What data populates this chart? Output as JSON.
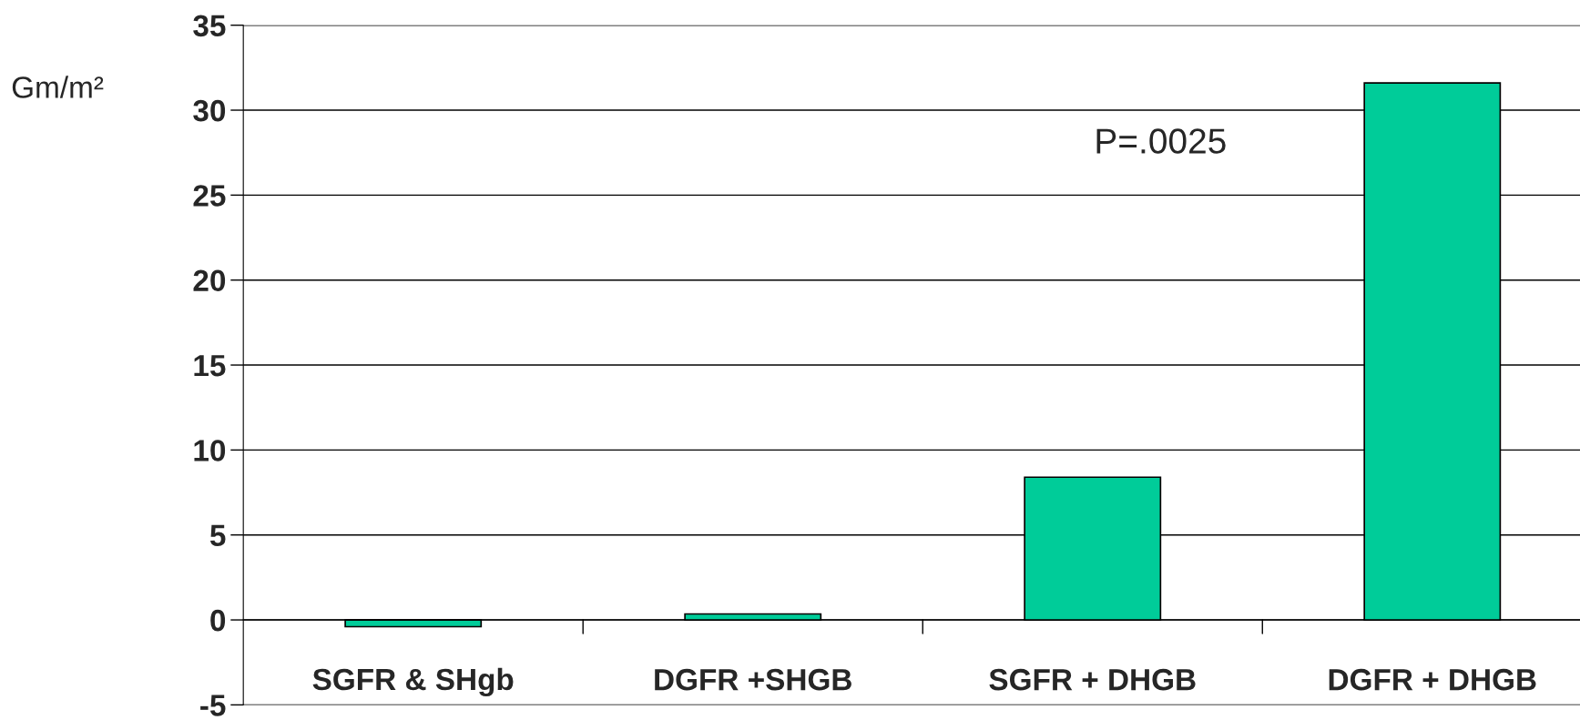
{
  "chart_data": {
    "type": "bar",
    "categories": [
      "SGFR & SHgb",
      "DGFR +SHGB",
      "SGFR + DHGB",
      "DGFR + DHGB"
    ],
    "values": [
      -0.4,
      0.35,
      8.4,
      31.6
    ],
    "color": "#00cc99",
    "ylabel": "Gm/m²",
    "ylim": [
      -5,
      35
    ],
    "yticks": [
      -5,
      0,
      5,
      10,
      15,
      20,
      25,
      30,
      35
    ],
    "grid": "y",
    "annotations": [
      "P=.0025"
    ]
  }
}
